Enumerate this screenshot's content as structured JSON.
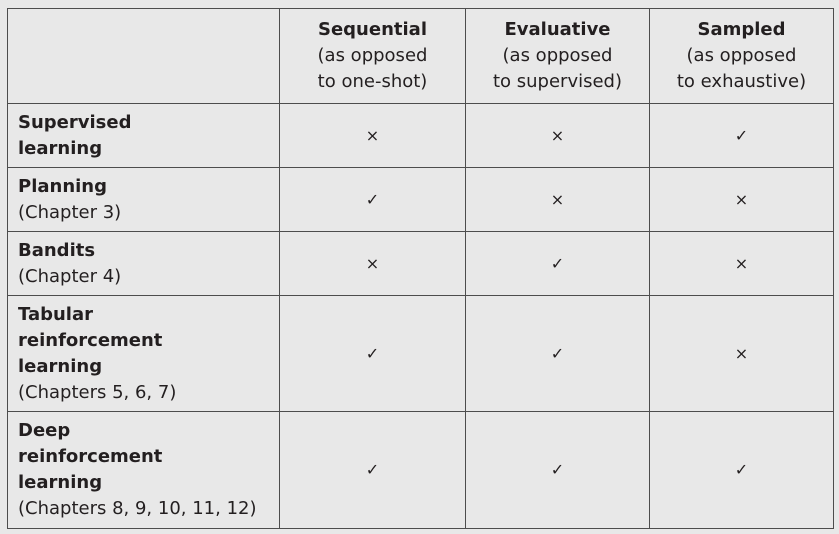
{
  "columns": [
    {
      "title": "Sequential",
      "subtitle_lines": [
        "(as opposed",
        "to one-shot)"
      ]
    },
    {
      "title": "Evaluative",
      "subtitle_lines": [
        "(as opposed",
        "to supervised)"
      ]
    },
    {
      "title": "Sampled",
      "subtitle_lines": [
        "(as opposed",
        "to exhaustive)"
      ]
    }
  ],
  "rows": [
    {
      "title_lines": [
        "Supervised",
        "learning"
      ],
      "subtitle": "",
      "marks": [
        "×",
        "×",
        "✓"
      ]
    },
    {
      "title_lines": [
        "Planning"
      ],
      "subtitle": "(Chapter 3)",
      "marks": [
        "✓",
        "×",
        "×"
      ]
    },
    {
      "title_lines": [
        "Bandits"
      ],
      "subtitle": "(Chapter 4)",
      "marks": [
        "×",
        "✓",
        "×"
      ]
    },
    {
      "title_lines": [
        "Tabular",
        "reinforcement",
        "learning"
      ],
      "subtitle": "(Chapters 5, 6, 7)",
      "marks": [
        "✓",
        "✓",
        "×"
      ]
    },
    {
      "title_lines": [
        "Deep",
        "reinforcement",
        "learning"
      ],
      "subtitle": "(Chapters 8, 9, 10, 11, 12)",
      "marks": [
        "✓",
        "✓",
        "✓"
      ]
    }
  ],
  "colors": {
    "background": "#e8e8e8",
    "border": "#4d4d4d",
    "text": "#231f20"
  }
}
